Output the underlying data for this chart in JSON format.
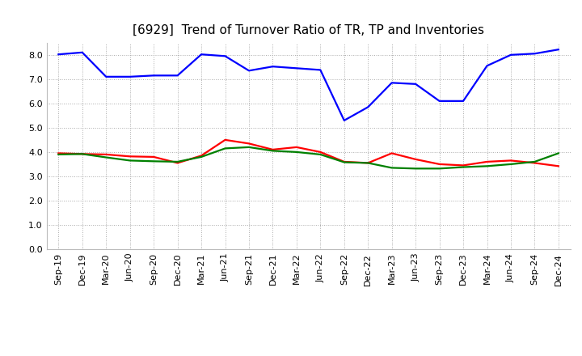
{
  "title": "[6929]  Trend of Turnover Ratio of TR, TP and Inventories",
  "x_labels": [
    "Sep-19",
    "Dec-19",
    "Mar-20",
    "Jun-20",
    "Sep-20",
    "Dec-20",
    "Mar-21",
    "Jun-21",
    "Sep-21",
    "Dec-21",
    "Mar-22",
    "Jun-22",
    "Sep-22",
    "Dec-22",
    "Mar-23",
    "Jun-23",
    "Sep-23",
    "Dec-23",
    "Mar-24",
    "Jun-24",
    "Sep-24",
    "Dec-24"
  ],
  "trade_receivables": [
    3.95,
    3.92,
    3.9,
    3.82,
    3.8,
    3.55,
    3.85,
    4.5,
    4.35,
    4.1,
    4.2,
    4.0,
    3.6,
    3.55,
    3.95,
    3.7,
    3.5,
    3.45,
    3.6,
    3.65,
    3.55,
    3.42
  ],
  "trade_payables": [
    8.02,
    8.1,
    7.1,
    7.1,
    7.15,
    7.15,
    8.02,
    7.95,
    7.35,
    7.52,
    7.45,
    7.38,
    5.3,
    5.85,
    6.85,
    6.8,
    6.1,
    6.1,
    7.55,
    8.0,
    8.05,
    8.22
  ],
  "inventories": [
    3.9,
    3.92,
    3.78,
    3.65,
    3.62,
    3.6,
    3.8,
    4.15,
    4.2,
    4.05,
    4.0,
    3.9,
    3.58,
    3.55,
    3.35,
    3.32,
    3.32,
    3.38,
    3.42,
    3.5,
    3.6,
    3.95
  ],
  "tr_color": "#ff0000",
  "tp_color": "#0000ff",
  "inv_color": "#008000",
  "ylim": [
    0.0,
    8.5
  ],
  "yticks": [
    0.0,
    1.0,
    2.0,
    3.0,
    4.0,
    5.0,
    6.0,
    7.0,
    8.0
  ],
  "background_color": "#ffffff",
  "grid_color": "#aaaaaa",
  "title_fontsize": 11,
  "axis_fontsize": 8,
  "legend_fontsize": 9,
  "line_width": 1.6
}
